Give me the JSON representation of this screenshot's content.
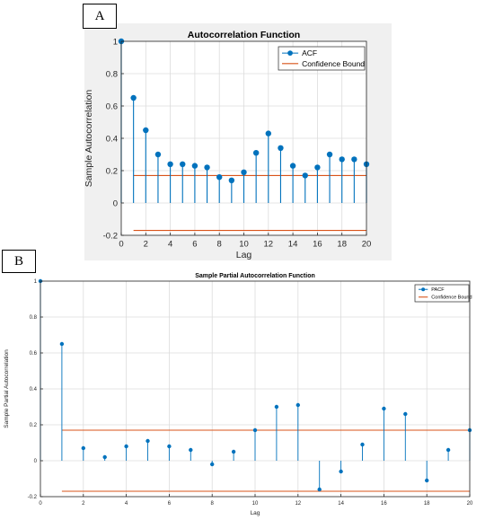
{
  "panels": {
    "a_label": "A",
    "b_label": "B"
  },
  "chart_data": [
    {
      "type": "stem",
      "title": "Autocorrelation Function",
      "xlabel": "Lag",
      "ylabel": "Sample Autocorrelation",
      "xlim": [
        0,
        20
      ],
      "ylim": [
        -0.2,
        1
      ],
      "x_ticks": [
        0,
        2,
        4,
        6,
        8,
        10,
        12,
        14,
        16,
        18,
        20
      ],
      "y_ticks": [
        -0.2,
        0,
        0.2,
        0.4,
        0.6,
        0.8,
        1
      ],
      "x_tick_labels": [
        "0",
        "2",
        "4",
        "6",
        "8",
        "10",
        "12",
        "14",
        "16",
        "18",
        "20"
      ],
      "y_tick_labels": [
        "-0.2",
        "0",
        "0.2",
        "0.4",
        "0.6",
        "0.8",
        "1"
      ],
      "grid": true,
      "legend": "top-right",
      "series": [
        {
          "name": "ACF",
          "color": "#0072BD",
          "x": [
            0,
            1,
            2,
            3,
            4,
            5,
            6,
            7,
            8,
            9,
            10,
            11,
            12,
            13,
            14,
            15,
            16,
            17,
            18,
            19,
            20
          ],
          "y": [
            1.0,
            0.65,
            0.45,
            0.3,
            0.24,
            0.24,
            0.23,
            0.22,
            0.16,
            0.14,
            0.19,
            0.31,
            0.43,
            0.34,
            0.23,
            0.17,
            0.22,
            0.3,
            0.27,
            0.27,
            0.24
          ]
        }
      ],
      "confidence_bound": {
        "name": "Confidence Bound",
        "color": "#D95319",
        "upper": 0.17,
        "lower": -0.17
      }
    },
    {
      "type": "stem",
      "title": "Sample Partial Autocorrelation Function",
      "xlabel": "Lag",
      "ylabel": "Sample Partial Autocorrelation",
      "xlim": [
        0,
        20
      ],
      "ylim": [
        -0.2,
        1
      ],
      "x_ticks": [
        0,
        2,
        4,
        6,
        8,
        10,
        12,
        14,
        16,
        18,
        20
      ],
      "y_ticks": [
        -0.2,
        0,
        0.2,
        0.4,
        0.6,
        0.8,
        1
      ],
      "x_tick_labels": [
        "0",
        "2",
        "4",
        "6",
        "8",
        "10",
        "12",
        "14",
        "16",
        "18",
        "20"
      ],
      "y_tick_labels": [
        "-0.2",
        "0",
        "0.2",
        "0.4",
        "0.6",
        "0.8",
        "1"
      ],
      "grid": true,
      "legend": "top-right",
      "series": [
        {
          "name": "PACF",
          "color": "#0072BD",
          "x": [
            0,
            1,
            2,
            3,
            4,
            5,
            6,
            7,
            8,
            9,
            10,
            11,
            12,
            13,
            14,
            15,
            16,
            17,
            18,
            19,
            20
          ],
          "y": [
            1.0,
            0.65,
            0.07,
            0.02,
            0.08,
            0.11,
            0.08,
            0.06,
            -0.02,
            0.05,
            0.17,
            0.3,
            0.31,
            -0.16,
            -0.06,
            0.09,
            0.29,
            0.26,
            -0.11,
            0.06,
            0.17
          ]
        }
      ],
      "confidence_bound": {
        "name": "Confidence Bound",
        "color": "#D95319",
        "upper": 0.17,
        "lower": -0.17
      }
    }
  ]
}
